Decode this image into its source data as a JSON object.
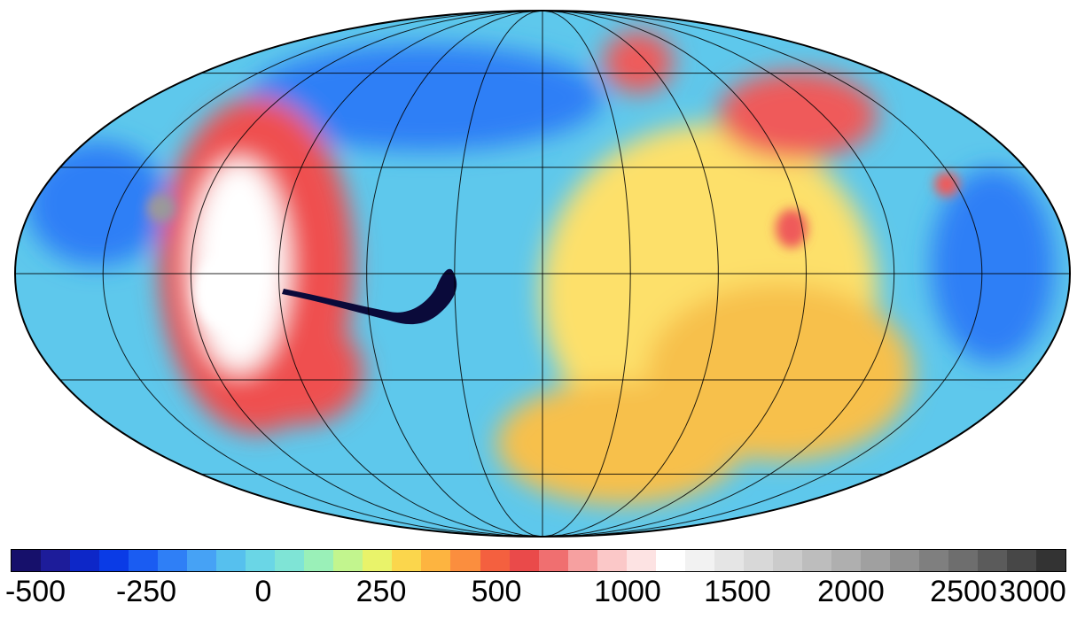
{
  "map": {
    "projection": "mollweide",
    "graticule": {
      "meridian_step_deg": 30,
      "parallel_step_deg": 30
    },
    "color_scale": [
      "#16106b",
      "#1d1c9a",
      "#0d27c8",
      "#0a3be6",
      "#1a5cf2",
      "#2f7ff6",
      "#46a2f5",
      "#56c0ee",
      "#6ad6e6",
      "#7fe4d6",
      "#9af0b8",
      "#c2f58e",
      "#e9f36a",
      "#fbd64c",
      "#fdb440",
      "#fb8e3e",
      "#f4603f",
      "#ea4a4a",
      "#f06f70",
      "#f6a0a0",
      "#fbc8c8",
      "#fde3e3",
      "#ffffff",
      "#f2f2f2",
      "#e5e5e5",
      "#d8d8d8",
      "#cbcbcb",
      "#bdbdbd",
      "#afafaf",
      "#a0a0a0",
      "#909090",
      "#7f7f7f",
      "#6e6e6e",
      "#5b5b5b",
      "#474747",
      "#333333"
    ],
    "base_color": "#5ec8ec",
    "regions": [
      {
        "name": "tharsis-high",
        "color": "#ef4f4f"
      },
      {
        "name": "tharsis-peak",
        "color": "#ffffff"
      },
      {
        "name": "olympus",
        "color": "#9a9a9a"
      },
      {
        "name": "valles-marineris",
        "color": "#0a0a3a"
      },
      {
        "name": "arabia-highlands",
        "color": "#fde06a"
      },
      {
        "name": "southern-highlands",
        "color": "#f7c04c"
      },
      {
        "name": "elysium",
        "color": "#ef5a5a"
      },
      {
        "name": "northern-lowlands",
        "color": "#2f7ff6"
      }
    ]
  },
  "colorbar": {
    "tick_labels": [
      "-500",
      "-250",
      "0",
      "250",
      "500",
      "1000",
      "1500",
      "2000",
      "2500",
      "3000"
    ],
    "border_color": "#000000"
  }
}
